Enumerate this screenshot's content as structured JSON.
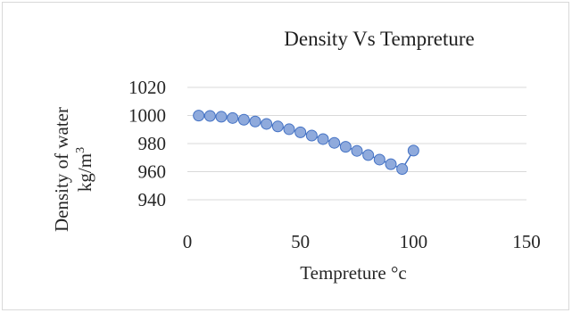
{
  "chart_data": {
    "type": "scatter",
    "title": "Density  Vs Tempreture",
    "xlabel": "Tempreture °c",
    "ylabel_line1": "Density  of water",
    "ylabel_line2": "kg/m",
    "ylabel_superscript": "3",
    "xlim": [
      0,
      150
    ],
    "ylim": [
      940,
      1020
    ],
    "xticks": [
      0,
      50,
      100,
      150
    ],
    "yticks": [
      940,
      960,
      980,
      1000,
      1020
    ],
    "grid": "horizontal",
    "legend": "none",
    "marker_color": "#8faadc",
    "marker_edge_color": "#4472c4",
    "line_color": "#4472c4",
    "series": [
      {
        "x": [
          5,
          10,
          15,
          20,
          25,
          30,
          35,
          40,
          45,
          50,
          55,
          60,
          65,
          70,
          75,
          80,
          85,
          90,
          95,
          100
        ],
        "y": [
          999.9,
          999.7,
          999.1,
          998.2,
          997.0,
          995.7,
          994.0,
          992.2,
          990.2,
          988.0,
          985.7,
          983.2,
          980.5,
          977.7,
          974.8,
          971.8,
          968.6,
          965.3,
          961.9,
          975.0
        ]
      }
    ]
  }
}
